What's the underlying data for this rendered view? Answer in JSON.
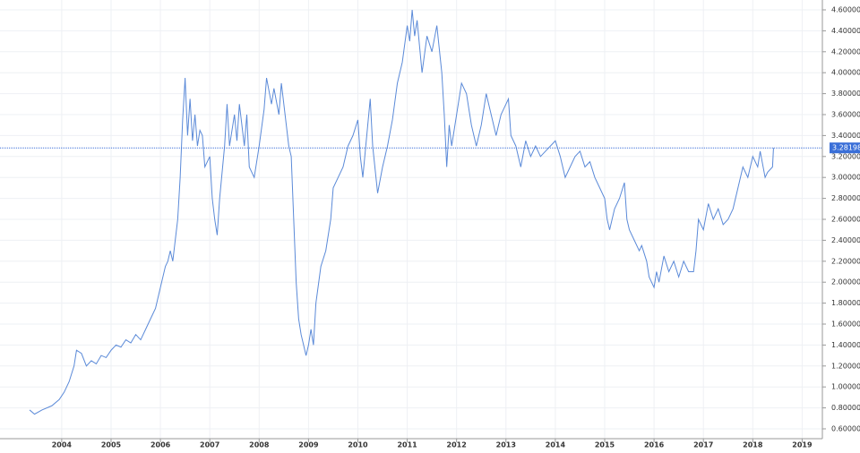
{
  "chart_data": {
    "type": "line",
    "x": [
      2003.35,
      2003.45,
      2003.6,
      2003.8,
      2003.95,
      2004.05,
      2004.15,
      2004.25,
      2004.3,
      2004.4,
      2004.5,
      2004.6,
      2004.7,
      2004.8,
      2004.9,
      2005.0,
      2005.1,
      2005.2,
      2005.3,
      2005.4,
      2005.5,
      2005.6,
      2005.7,
      2005.8,
      2005.9,
      2006.0,
      2006.1,
      2006.15,
      2006.2,
      2006.25,
      2006.3,
      2006.35,
      2006.4,
      2006.45,
      2006.5,
      2006.55,
      2006.6,
      2006.65,
      2006.7,
      2006.75,
      2006.8,
      2006.85,
      2006.9,
      2007.0,
      2007.05,
      2007.1,
      2007.15,
      2007.2,
      2007.3,
      2007.35,
      2007.4,
      2007.5,
      2007.55,
      2007.6,
      2007.7,
      2007.75,
      2007.8,
      2007.9,
      2008.0,
      2008.1,
      2008.15,
      2008.25,
      2008.3,
      2008.4,
      2008.45,
      2008.55,
      2008.6,
      2008.65,
      2008.7,
      2008.75,
      2008.8,
      2008.85,
      2008.9,
      2008.95,
      2009.0,
      2009.05,
      2009.1,
      2009.15,
      2009.25,
      2009.35,
      2009.45,
      2009.5,
      2009.6,
      2009.7,
      2009.8,
      2009.9,
      2010.0,
      2010.05,
      2010.1,
      2010.2,
      2010.25,
      2010.3,
      2010.4,
      2010.5,
      2010.6,
      2010.7,
      2010.8,
      2010.9,
      2011.0,
      2011.05,
      2011.1,
      2011.15,
      2011.2,
      2011.3,
      2011.4,
      2011.5,
      2011.6,
      2011.7,
      2011.75,
      2011.8,
      2011.85,
      2011.9,
      2012.0,
      2012.1,
      2012.2,
      2012.3,
      2012.4,
      2012.5,
      2012.6,
      2012.7,
      2012.8,
      2012.9,
      2013.0,
      2013.05,
      2013.1,
      2013.2,
      2013.3,
      2013.4,
      2013.5,
      2013.6,
      2013.7,
      2013.8,
      2013.9,
      2014.0,
      2014.1,
      2014.2,
      2014.3,
      2014.4,
      2014.5,
      2014.6,
      2014.7,
      2014.8,
      2014.9,
      2015.0,
      2015.05,
      2015.1,
      2015.2,
      2015.3,
      2015.4,
      2015.45,
      2015.5,
      2015.6,
      2015.7,
      2015.75,
      2015.85,
      2015.9,
      2016.0,
      2016.05,
      2016.1,
      2016.2,
      2016.3,
      2016.4,
      2016.5,
      2016.6,
      2016.7,
      2016.8,
      2016.85,
      2016.9,
      2017.0,
      2017.1,
      2017.2,
      2017.3,
      2017.4,
      2017.5,
      2017.6,
      2017.7,
      2017.8,
      2017.9,
      2018.0,
      2018.1,
      2018.15,
      2018.25,
      2018.3,
      2018.4,
      2018.42
    ],
    "series": [
      {
        "color": "#5b8ad8",
        "values": [
          0.78,
          0.74,
          0.78,
          0.82,
          0.88,
          0.95,
          1.05,
          1.2,
          1.35,
          1.32,
          1.2,
          1.25,
          1.22,
          1.3,
          1.28,
          1.35,
          1.4,
          1.38,
          1.45,
          1.42,
          1.5,
          1.45,
          1.55,
          1.65,
          1.75,
          1.95,
          2.15,
          2.2,
          2.3,
          2.2,
          2.4,
          2.6,
          3.0,
          3.55,
          3.95,
          3.4,
          3.75,
          3.35,
          3.6,
          3.3,
          3.45,
          3.4,
          3.1,
          3.2,
          2.8,
          2.6,
          2.45,
          2.8,
          3.3,
          3.7,
          3.3,
          3.6,
          3.35,
          3.7,
          3.3,
          3.6,
          3.1,
          3.0,
          3.3,
          3.65,
          3.95,
          3.7,
          3.85,
          3.6,
          3.9,
          3.5,
          3.3,
          3.2,
          2.6,
          2.0,
          1.65,
          1.5,
          1.4,
          1.3,
          1.4,
          1.55,
          1.4,
          1.8,
          2.15,
          2.3,
          2.6,
          2.9,
          3.0,
          3.1,
          3.3,
          3.4,
          3.55,
          3.2,
          3.0,
          3.5,
          3.75,
          3.3,
          2.85,
          3.1,
          3.3,
          3.55,
          3.9,
          4.1,
          4.45,
          4.3,
          4.6,
          4.35,
          4.5,
          4.0,
          4.35,
          4.2,
          4.45,
          4.0,
          3.6,
          3.1,
          3.5,
          3.3,
          3.6,
          3.9,
          3.8,
          3.5,
          3.3,
          3.5,
          3.8,
          3.6,
          3.4,
          3.6,
          3.7,
          3.75,
          3.4,
          3.3,
          3.1,
          3.35,
          3.2,
          3.3,
          3.2,
          3.25,
          3.3,
          3.35,
          3.2,
          3.0,
          3.1,
          3.2,
          3.25,
          3.1,
          3.15,
          3.0,
          2.9,
          2.8,
          2.6,
          2.5,
          2.7,
          2.8,
          2.95,
          2.6,
          2.5,
          2.4,
          2.3,
          2.35,
          2.2,
          2.05,
          1.95,
          2.1,
          2.0,
          2.25,
          2.1,
          2.2,
          2.05,
          2.2,
          2.1,
          2.1,
          2.3,
          2.6,
          2.5,
          2.75,
          2.6,
          2.7,
          2.55,
          2.6,
          2.7,
          2.9,
          3.1,
          3.0,
          3.2,
          3.1,
          3.25,
          3.0,
          3.05,
          3.1,
          3.28198
        ]
      }
    ],
    "last_price": 3.28198,
    "xlim": [
      2002.75,
      2019.41
    ],
    "xticks": [
      2004,
      2005,
      2006,
      2007,
      2008,
      2009,
      2010,
      2011,
      2012,
      2013,
      2014,
      2015,
      2016,
      2017,
      2018,
      2019
    ],
    "ylim": [
      0.506,
      4.694
    ],
    "yticks": [
      {
        "value": 0.6,
        "label": "0.600000"
      },
      {
        "value": 0.8,
        "label": "0.800000"
      },
      {
        "value": 1.0,
        "label": "1.000000"
      },
      {
        "value": 1.2,
        "label": "1.200000"
      },
      {
        "value": 1.4,
        "label": "1.400000"
      },
      {
        "value": 1.6,
        "label": "1.600000"
      },
      {
        "value": 1.8,
        "label": "1.800000"
      },
      {
        "value": 2.0,
        "label": "2.000000"
      },
      {
        "value": 2.2,
        "label": "2.200000"
      },
      {
        "value": 2.4,
        "label": "2.400000"
      },
      {
        "value": 2.6,
        "label": "2.600000"
      },
      {
        "value": 2.8,
        "label": "2.800000"
      },
      {
        "value": 3.0,
        "label": "3.000000"
      },
      {
        "value": 3.2,
        "label": "3.200000"
      },
      {
        "value": 3.4,
        "label": "3.400000"
      },
      {
        "value": 3.6,
        "label": "3.600000"
      },
      {
        "value": 3.8,
        "label": "3.800000"
      },
      {
        "value": 4.0,
        "label": "4.000000"
      },
      {
        "value": 4.2,
        "label": "4.200000"
      },
      {
        "value": 4.4,
        "label": "4.400000"
      },
      {
        "value": 4.6,
        "label": "4.600000"
      }
    ],
    "grid": true
  }
}
